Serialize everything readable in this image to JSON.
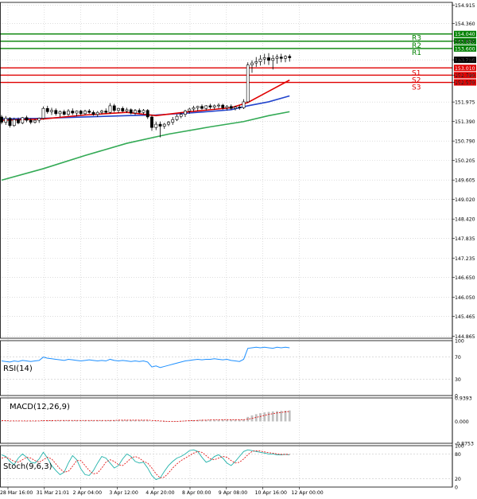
{
  "colors": {
    "background": "#ffffff",
    "grid": "#c8c8c8",
    "frame": "#000000",
    "resistance": "#008000",
    "support": "#e00000",
    "ema_fast": "#e00000",
    "ema_mid": "#2244cc",
    "ema_slow": "#33aa55",
    "price_box": "#000000",
    "candle_bull": "#ffffff",
    "candle_bear": "#000000",
    "rsi_line": "#1e90ff",
    "macd_hist": "#c0c0c0",
    "macd_signal": "#e00000",
    "stoch_main": "#20b2aa",
    "stoch_signal": "#e00000"
  },
  "chart_data": [
    {
      "type": "candlestick",
      "name": "price",
      "ylim": [
        144.8,
        155.0
      ],
      "y_ticks": [
        "154.915",
        "154.360",
        "153.830",
        "153.256",
        "152.790",
        "152.570",
        "151.975",
        "151.390",
        "150.790",
        "150.205",
        "149.605",
        "149.020",
        "148.420",
        "147.835",
        "147.235",
        "146.650",
        "146.050",
        "145.465",
        "144.865"
      ],
      "x_ticks": [
        "28 Mar 16:00",
        "31 Mar 21:01",
        "2 Apr 04:00",
        "3 Apr 12:00",
        "4 Apr 20:00",
        "8 Apr 00:00",
        "9 Apr 08:00",
        "10 Apr 16:00",
        "12 Apr 00:00"
      ],
      "candles": [
        [
          151.52,
          151.58,
          151.3,
          151.36
        ],
        [
          151.36,
          151.55,
          151.28,
          151.48
        ],
        [
          151.48,
          151.52,
          151.2,
          151.26
        ],
        [
          151.26,
          151.5,
          151.22,
          151.44
        ],
        [
          151.44,
          151.5,
          151.3,
          151.34
        ],
        [
          151.34,
          151.52,
          151.3,
          151.5
        ],
        [
          151.5,
          151.56,
          151.36,
          151.42
        ],
        [
          151.42,
          151.48,
          151.3,
          151.36
        ],
        [
          151.36,
          151.46,
          151.32,
          151.42
        ],
        [
          151.42,
          151.5,
          151.34,
          151.48
        ],
        [
          151.48,
          151.84,
          151.44,
          151.78
        ],
        [
          151.78,
          151.86,
          151.62,
          151.68
        ],
        [
          151.68,
          151.8,
          151.58,
          151.72
        ],
        [
          151.72,
          151.78,
          151.56,
          151.62
        ],
        [
          151.62,
          151.72,
          151.52,
          151.68
        ],
        [
          151.68,
          151.74,
          151.56,
          151.6
        ],
        [
          151.6,
          151.76,
          151.55,
          151.7
        ],
        [
          151.7,
          151.78,
          151.58,
          151.64
        ],
        [
          151.64,
          151.72,
          151.54,
          151.7
        ],
        [
          151.7,
          151.74,
          151.56,
          151.62
        ],
        [
          151.62,
          151.74,
          151.58,
          151.7
        ],
        [
          151.7,
          151.76,
          151.62,
          151.66
        ],
        [
          151.66,
          151.72,
          151.56,
          151.6
        ],
        [
          151.6,
          151.7,
          151.52,
          151.66
        ],
        [
          151.66,
          151.74,
          151.6,
          151.7
        ],
        [
          151.7,
          151.78,
          151.62,
          151.66
        ],
        [
          151.66,
          151.94,
          151.62,
          151.86
        ],
        [
          151.86,
          151.92,
          151.66,
          151.72
        ],
        [
          151.72,
          151.8,
          151.64,
          151.78
        ],
        [
          151.78,
          151.84,
          151.66,
          151.7
        ],
        [
          151.7,
          151.8,
          151.64,
          151.74
        ],
        [
          151.74,
          151.78,
          151.6,
          151.64
        ],
        [
          151.64,
          151.76,
          151.58,
          151.72
        ],
        [
          151.72,
          151.78,
          151.62,
          151.66
        ],
        [
          151.66,
          151.76,
          151.6,
          151.72
        ],
        [
          151.72,
          151.76,
          151.46,
          151.52
        ],
        [
          151.52,
          151.58,
          151.1,
          151.2
        ],
        [
          151.2,
          151.38,
          151.12,
          151.3
        ],
        [
          151.3,
          151.38,
          150.9,
          151.24
        ],
        [
          151.24,
          151.34,
          151.16,
          151.3
        ],
        [
          151.3,
          151.4,
          151.24,
          151.36
        ],
        [
          151.36,
          151.52,
          151.28,
          151.44
        ],
        [
          151.44,
          151.6,
          151.4,
          151.54
        ],
        [
          151.54,
          151.66,
          151.48,
          151.6
        ],
        [
          151.6,
          151.74,
          151.52,
          151.7
        ],
        [
          151.7,
          151.8,
          151.62,
          151.76
        ],
        [
          151.76,
          151.86,
          151.68,
          151.8
        ],
        [
          151.8,
          151.86,
          151.7,
          151.84
        ],
        [
          151.84,
          151.9,
          151.74,
          151.78
        ],
        [
          151.78,
          151.88,
          151.72,
          151.86
        ],
        [
          151.86,
          151.92,
          151.76,
          151.82
        ],
        [
          151.82,
          151.9,
          151.74,
          151.86
        ],
        [
          151.86,
          151.94,
          151.78,
          151.88
        ],
        [
          151.88,
          151.92,
          151.74,
          151.8
        ],
        [
          151.8,
          151.88,
          151.72,
          151.84
        ],
        [
          151.84,
          151.9,
          151.74,
          151.78
        ],
        [
          151.78,
          151.86,
          151.72,
          151.82
        ],
        [
          151.82,
          151.88,
          151.74,
          151.8
        ],
        [
          151.8,
          152.06,
          151.76,
          151.98
        ],
        [
          151.98,
          153.18,
          151.96,
          153.1
        ],
        [
          153.1,
          153.24,
          152.86,
          153.16
        ],
        [
          153.16,
          153.34,
          153.04,
          153.2
        ],
        [
          153.2,
          153.4,
          153.08,
          153.28
        ],
        [
          153.28,
          153.44,
          153.12,
          153.32
        ],
        [
          153.32,
          153.46,
          153.1,
          153.24
        ],
        [
          153.24,
          153.4,
          152.96,
          153.3
        ],
        [
          153.3,
          153.42,
          153.14,
          153.34
        ],
        [
          153.34,
          153.44,
          153.18,
          153.3
        ],
        [
          153.3,
          153.4,
          153.18,
          153.36
        ],
        [
          153.36,
          153.42,
          153.2,
          153.32
        ]
      ],
      "levels": [
        {
          "label": "R3",
          "value": 154.04,
          "tag": "154.040",
          "kind": "resistance"
        },
        {
          "label": "R2",
          "value": 153.82,
          "tag": "153.820",
          "kind": "resistance"
        },
        {
          "label": "R1",
          "value": 153.6,
          "tag": "153.600",
          "kind": "resistance"
        },
        {
          "label": "S1",
          "value": 153.01,
          "tag": "153.010",
          "kind": "support"
        },
        {
          "label": "S2",
          "value": 152.79,
          "tag": "152.790",
          "kind": "support"
        },
        {
          "label": "S3",
          "value": 152.57,
          "tag": "152.570",
          "kind": "support"
        }
      ],
      "current_price": {
        "value": 153.256,
        "tag": "153.256"
      },
      "moving_averages": [
        {
          "color_key": "ema_slow",
          "points": [
            [
              0,
              149.6
            ],
            [
              10,
              149.95
            ],
            [
              20,
              150.35
            ],
            [
              30,
              150.72
            ],
            [
              40,
              151.0
            ],
            [
              50,
              151.22
            ],
            [
              58,
              151.38
            ],
            [
              64,
              151.56
            ],
            [
              69,
              151.68
            ]
          ]
        },
        {
          "color_key": "ema_mid",
          "points": [
            [
              0,
              151.46
            ],
            [
              10,
              151.48
            ],
            [
              20,
              151.52
            ],
            [
              30,
              151.56
            ],
            [
              37,
              151.58
            ],
            [
              45,
              151.64
            ],
            [
              55,
              151.74
            ],
            [
              59,
              151.86
            ],
            [
              64,
              151.98
            ],
            [
              69,
              152.16
            ]
          ]
        },
        {
          "color_key": "ema_fast",
          "points": [
            [
              0,
              151.42
            ],
            [
              10,
              151.46
            ],
            [
              20,
              151.58
            ],
            [
              30,
              151.66
            ],
            [
              37,
              151.56
            ],
            [
              45,
              151.68
            ],
            [
              55,
              151.8
            ],
            [
              59,
              151.96
            ],
            [
              64,
              152.3
            ],
            [
              69,
              152.64
            ]
          ]
        }
      ]
    },
    {
      "type": "line",
      "name": "rsi",
      "title": "RSI(14)",
      "ylim": [
        0,
        100
      ],
      "y_ticks": [
        "100",
        "70",
        "30",
        "0"
      ],
      "y_tick_values": [
        100,
        70,
        30,
        0
      ],
      "values": [
        63,
        62,
        61,
        63,
        62,
        64,
        63,
        62,
        63,
        64,
        70,
        68,
        67,
        66,
        65,
        64,
        66,
        65,
        64,
        63,
        64,
        65,
        64,
        63,
        64,
        63,
        66,
        64,
        63,
        64,
        63,
        62,
        63,
        62,
        63,
        61,
        52,
        54,
        51,
        53,
        55,
        57,
        59,
        61,
        63,
        64,
        65,
        66,
        65,
        66,
        66,
        67,
        66,
        65,
        66,
        64,
        63,
        62,
        66,
        86,
        87,
        88,
        87,
        88,
        87,
        86,
        88,
        87,
        88,
        87
      ]
    },
    {
      "type": "bar",
      "name": "macd",
      "title": "MACD(12,26,9)",
      "ylim": [
        -0.8753,
        0.9393
      ],
      "y_ticks": [
        "0.9393",
        "0.000",
        "-0.8753"
      ],
      "y_tick_values": [
        0.9393,
        0.0,
        -0.8753
      ],
      "histogram": [
        0.02,
        0.02,
        0.01,
        0.02,
        0.02,
        0.02,
        0.01,
        0.01,
        0.01,
        0.02,
        0.04,
        0.04,
        0.04,
        0.04,
        0.04,
        0.04,
        0.04,
        0.04,
        0.04,
        0.04,
        0.04,
        0.04,
        0.04,
        0.04,
        0.04,
        0.04,
        0.05,
        0.05,
        0.05,
        0.05,
        0.05,
        0.05,
        0.05,
        0.05,
        0.05,
        0.04,
        0.02,
        0.01,
        0.0,
        -0.01,
        -0.01,
        0.0,
        0.01,
        0.02,
        0.03,
        0.04,
        0.05,
        0.06,
        0.06,
        0.06,
        0.07,
        0.07,
        0.07,
        0.07,
        0.07,
        0.07,
        0.07,
        0.07,
        0.08,
        0.18,
        0.24,
        0.29,
        0.33,
        0.36,
        0.38,
        0.4,
        0.41,
        0.42,
        0.43,
        0.44
      ],
      "signal": [
        0.03,
        0.03,
        0.02,
        0.02,
        0.02,
        0.02,
        0.02,
        0.02,
        0.02,
        0.02,
        0.03,
        0.03,
        0.03,
        0.04,
        0.04,
        0.04,
        0.04,
        0.04,
        0.04,
        0.04,
        0.04,
        0.04,
        0.04,
        0.04,
        0.04,
        0.04,
        0.04,
        0.04,
        0.05,
        0.05,
        0.05,
        0.05,
        0.05,
        0.05,
        0.05,
        0.05,
        0.04,
        0.03,
        0.02,
        0.01,
        0.0,
        0.0,
        0.0,
        0.01,
        0.02,
        0.03,
        0.03,
        0.04,
        0.05,
        0.05,
        0.06,
        0.06,
        0.06,
        0.07,
        0.07,
        0.07,
        0.07,
        0.07,
        0.07,
        0.09,
        0.12,
        0.16,
        0.2,
        0.24,
        0.28,
        0.31,
        0.34,
        0.36,
        0.38,
        0.4
      ]
    },
    {
      "type": "line",
      "name": "stochastic",
      "title": "Stoch(9,6,3)",
      "ylim": [
        0,
        100
      ],
      "y_ticks": [
        "100",
        "80",
        "20",
        "0"
      ],
      "y_tick_values": [
        100,
        80,
        20,
        0
      ],
      "main": [
        78,
        74,
        62,
        54,
        70,
        80,
        72,
        60,
        58,
        68,
        84,
        70,
        52,
        40,
        30,
        36,
        58,
        76,
        66,
        44,
        30,
        28,
        40,
        58,
        74,
        70,
        58,
        46,
        52,
        68,
        80,
        74,
        62,
        58,
        60,
        46,
        28,
        18,
        22,
        38,
        52,
        62,
        70,
        74,
        80,
        88,
        90,
        86,
        72,
        60,
        64,
        74,
        78,
        70,
        58,
        52,
        62,
        74,
        86,
        90,
        88,
        86,
        84,
        82,
        80,
        80,
        78,
        78,
        79,
        78
      ],
      "signal": [
        70,
        72,
        68,
        62,
        60,
        66,
        72,
        70,
        64,
        60,
        66,
        72,
        68,
        56,
        44,
        36,
        38,
        50,
        64,
        64,
        52,
        40,
        32,
        34,
        46,
        60,
        66,
        62,
        54,
        52,
        60,
        70,
        74,
        70,
        62,
        58,
        46,
        32,
        22,
        24,
        34,
        46,
        56,
        64,
        70,
        76,
        82,
        86,
        84,
        76,
        68,
        66,
        70,
        74,
        72,
        64,
        58,
        60,
        68,
        78,
        86,
        88,
        87,
        85,
        83,
        82,
        80,
        79,
        79,
        79
      ]
    }
  ]
}
